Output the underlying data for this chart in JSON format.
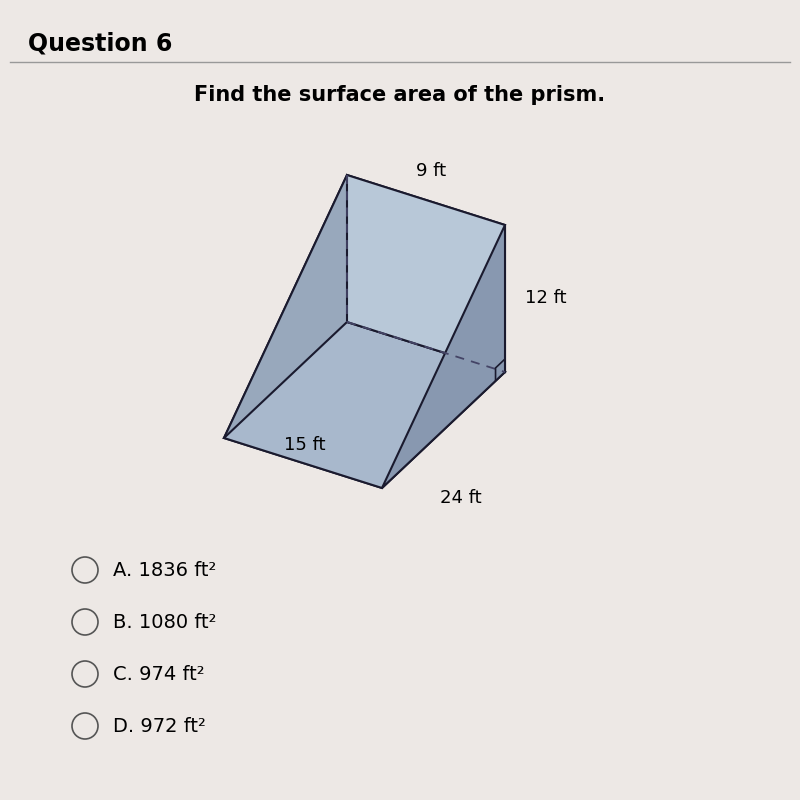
{
  "title": "Question 6",
  "subtitle": "Find the surface area of the prism.",
  "background_color": "#ede8e5",
  "prism": {
    "label_top": "9 ft",
    "label_right": "12 ft",
    "label_bottom_left": "15 ft",
    "label_bottom_right": "24 ft"
  },
  "choices": [
    "A. 1836 ft²",
    "B. 1080 ft²",
    "C. 974 ft²",
    "D. 972 ft²"
  ],
  "prism_face_color_top": "#b8c8d8",
  "prism_face_color_right": "#a8b8cc",
  "prism_face_color_slant": "#98a8bc",
  "prism_face_color_tri_front": "#8898b0",
  "prism_face_color_tri_back": "#7888a4",
  "prism_edge_color": "#1a1a2e",
  "dashed_edge_color": "#444466",
  "title_fontsize": 17,
  "subtitle_fontsize": 15,
  "label_fontsize": 13,
  "choice_fontsize": 14
}
